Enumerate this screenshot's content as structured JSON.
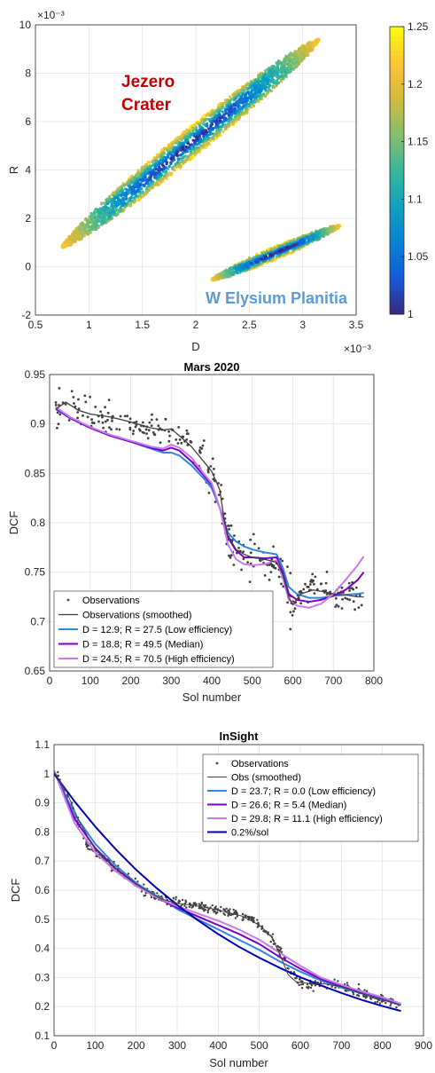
{
  "chart_data": [
    {
      "type": "scatter",
      "title": "",
      "xlabel": "D",
      "ylabel": "R",
      "xlim": [
        0.5,
        3.5
      ],
      "ylim": [
        -2,
        10
      ],
      "x_ticks": [
        "0.5",
        "1",
        "1.5",
        "2",
        "2.5",
        "3",
        "3.5"
      ],
      "y_ticks": [
        "-2",
        "0",
        "2",
        "4",
        "6",
        "8",
        "10"
      ],
      "x_exponent": "×10⁻³",
      "y_exponent": "×10⁻³",
      "grid": true,
      "annotations": [
        {
          "text_lines": [
            "Jezero",
            "Crater"
          ],
          "color": "#c00000"
        },
        {
          "text_lines": [
            "W Elysium Planitia"
          ],
          "color": "#5b9bd5"
        }
      ],
      "clusters": [
        {
          "x_range": [
            0.75,
            3.15
          ],
          "y_range": [
            0.8,
            9.4
          ]
        },
        {
          "x_range": [
            2.15,
            3.35
          ],
          "y_range": [
            -0.55,
            1.7
          ]
        }
      ],
      "colorbar": {
        "range": [
          1,
          1.25
        ],
        "ticks": [
          "1",
          "1.05",
          "1.1",
          "1.15",
          "1.2",
          "1.25"
        ],
        "colormap": "parula"
      }
    },
    {
      "type": "line",
      "title": "Mars 2020",
      "xlabel": "Sol number",
      "ylabel": "DCF",
      "xlim": [
        0,
        800
      ],
      "ylim": [
        0.65,
        0.95
      ],
      "x_ticks": [
        "0",
        "100",
        "200",
        "300",
        "400",
        "500",
        "600",
        "700",
        "800"
      ],
      "y_ticks": [
        "0.65",
        "0.7",
        "0.75",
        "0.8",
        "0.85",
        "0.9",
        "0.95"
      ],
      "grid": true,
      "legend_position": "bottom-left",
      "series": [
        {
          "name": "Observations",
          "style": "dots",
          "color": "#404040"
        },
        {
          "name": "Observations (smoothed)",
          "color": "#404040",
          "x": [
            15,
            40,
            70,
            100,
            150,
            200,
            250,
            280,
            300,
            320,
            350,
            380,
            400,
            420,
            430,
            440,
            460,
            480,
            500,
            530,
            560,
            575,
            590,
            600,
            620,
            650,
            680,
            700,
            730,
            760,
            775
          ],
          "y": [
            0.915,
            0.922,
            0.914,
            0.91,
            0.907,
            0.902,
            0.896,
            0.894,
            0.895,
            0.888,
            0.877,
            0.862,
            0.852,
            0.833,
            0.805,
            0.787,
            0.773,
            0.768,
            0.765,
            0.763,
            0.76,
            0.748,
            0.725,
            0.717,
            0.728,
            0.732,
            0.73,
            0.728,
            0.727,
            0.725,
            0.725
          ]
        },
        {
          "name": "D = 12.9; R = 27.5 (Low efficiency)",
          "color": "#2e86de",
          "x": [
            15,
            50,
            100,
            150,
            200,
            250,
            280,
            300,
            320,
            350,
            380,
            400,
            420,
            440,
            460,
            480,
            500,
            530,
            560,
            575,
            590,
            610,
            640,
            670,
            700,
            730,
            760,
            775
          ],
          "y": [
            0.915,
            0.906,
            0.896,
            0.888,
            0.882,
            0.875,
            0.871,
            0.871,
            0.868,
            0.858,
            0.845,
            0.835,
            0.815,
            0.79,
            0.781,
            0.776,
            0.773,
            0.77,
            0.768,
            0.755,
            0.735,
            0.728,
            0.724,
            0.724,
            0.726,
            0.727,
            0.728,
            0.729
          ]
        },
        {
          "name": "D = 18.8; R = 49.5 (Median)",
          "color": "#7a00c8",
          "x": [
            15,
            50,
            100,
            150,
            200,
            250,
            280,
            300,
            320,
            350,
            380,
            400,
            420,
            440,
            460,
            480,
            500,
            530,
            560,
            575,
            590,
            610,
            640,
            670,
            700,
            730,
            760,
            775
          ],
          "y": [
            0.916,
            0.906,
            0.896,
            0.888,
            0.882,
            0.876,
            0.873,
            0.876,
            0.873,
            0.862,
            0.848,
            0.838,
            0.815,
            0.785,
            0.772,
            0.765,
            0.765,
            0.764,
            0.765,
            0.75,
            0.728,
            0.722,
            0.72,
            0.722,
            0.726,
            0.732,
            0.742,
            0.75
          ]
        },
        {
          "name": "D = 24.5; R = 70.5 (High efficiency)",
          "color": "#c77cf0",
          "x": [
            15,
            50,
            100,
            150,
            200,
            250,
            280,
            300,
            320,
            350,
            380,
            400,
            420,
            440,
            460,
            480,
            500,
            530,
            560,
            575,
            590,
            610,
            640,
            670,
            700,
            730,
            760,
            775
          ],
          "y": [
            0.917,
            0.907,
            0.897,
            0.889,
            0.883,
            0.877,
            0.875,
            0.879,
            0.876,
            0.866,
            0.85,
            0.84,
            0.815,
            0.778,
            0.763,
            0.758,
            0.757,
            0.758,
            0.762,
            0.745,
            0.722,
            0.716,
            0.714,
            0.718,
            0.728,
            0.742,
            0.757,
            0.766
          ]
        }
      ]
    },
    {
      "type": "line",
      "title": "InSight",
      "xlabel": "Sol number",
      "ylabel": "DCF",
      "xlim": [
        0,
        900
      ],
      "ylim": [
        0.1,
        1.1
      ],
      "x_ticks": [
        "0",
        "100",
        "200",
        "300",
        "400",
        "500",
        "600",
        "700",
        "800",
        "900"
      ],
      "y_ticks": [
        "0.1",
        "0.2",
        "0.3",
        "0.4",
        "0.5",
        "0.6",
        "0.7",
        "0.8",
        "0.9",
        "1",
        "1.1"
      ],
      "grid": true,
      "legend_position": "top-right",
      "series": [
        {
          "name": "Observations",
          "style": "dots",
          "color": "#404040",
          "x": [
            5,
            20,
            35,
            50,
            70,
            90,
            110,
            130,
            150,
            175,
            200,
            230,
            260,
            290,
            320,
            350,
            380,
            410,
            440,
            470,
            500,
            520,
            540,
            560,
            580,
            600,
            620,
            650,
            680,
            700,
            730,
            760,
            790,
            820,
            840
          ],
          "y": [
            1.0,
            0.95,
            0.92,
            0.86,
            0.79,
            0.74,
            0.72,
            0.7,
            0.67,
            0.645,
            0.62,
            0.59,
            0.57,
            0.56,
            0.555,
            0.545,
            0.535,
            0.53,
            0.52,
            0.505,
            0.48,
            0.45,
            0.42,
            0.37,
            0.31,
            0.28,
            0.275,
            0.28,
            0.28,
            0.27,
            0.255,
            0.24,
            0.225,
            0.215,
            0.205
          ]
        },
        {
          "name": "Obs (smoothed)",
          "color": "#404040",
          "x": [
            0,
            30,
            60,
            100,
            150,
            200,
            260,
            300,
            340,
            380,
            420,
            460,
            500,
            530,
            550,
            570,
            590,
            620,
            660,
            700,
            760,
            820,
            845
          ],
          "y": [
            1.005,
            0.94,
            0.84,
            0.74,
            0.675,
            0.62,
            0.57,
            0.555,
            0.548,
            0.538,
            0.525,
            0.51,
            0.48,
            0.44,
            0.38,
            0.31,
            0.285,
            0.28,
            0.278,
            0.268,
            0.24,
            0.215,
            0.205
          ]
        },
        {
          "name": "D = 23.7; R = 0.0 (Low efficiency)",
          "color": "#2e86de",
          "x": [
            0,
            50,
            100,
            150,
            200,
            250,
            300,
            350,
            400,
            450,
            500,
            550,
            600,
            650,
            700,
            750,
            800,
            845
          ],
          "y": [
            1.01,
            0.86,
            0.76,
            0.685,
            0.625,
            0.58,
            0.535,
            0.5,
            0.465,
            0.43,
            0.395,
            0.355,
            0.32,
            0.29,
            0.265,
            0.245,
            0.225,
            0.205
          ]
        },
        {
          "name": "D = 26.6; R = 5.4 (Median)",
          "color": "#7a00c8",
          "x": [
            0,
            50,
            100,
            150,
            200,
            250,
            300,
            350,
            400,
            450,
            500,
            550,
            600,
            650,
            700,
            750,
            800,
            845
          ],
          "y": [
            1.01,
            0.845,
            0.745,
            0.675,
            0.62,
            0.575,
            0.54,
            0.51,
            0.48,
            0.45,
            0.415,
            0.37,
            0.33,
            0.295,
            0.27,
            0.25,
            0.23,
            0.208
          ]
        },
        {
          "name": "D = 29.8; R = 11.1 (High efficiency)",
          "color": "#c77cf0",
          "x": [
            0,
            50,
            100,
            150,
            200,
            250,
            300,
            350,
            400,
            450,
            500,
            550,
            600,
            650,
            700,
            750,
            800,
            845
          ],
          "y": [
            1.01,
            0.83,
            0.73,
            0.665,
            0.615,
            0.575,
            0.545,
            0.52,
            0.495,
            0.465,
            0.43,
            0.385,
            0.34,
            0.3,
            0.275,
            0.252,
            0.232,
            0.21
          ]
        },
        {
          "name": "0.2%/sol",
          "color": "#0000b4",
          "x": [
            0,
            50,
            100,
            150,
            200,
            250,
            300,
            350,
            400,
            450,
            500,
            550,
            600,
            650,
            700,
            750,
            800,
            845
          ],
          "y": [
            1.0,
            0.905,
            0.819,
            0.741,
            0.67,
            0.607,
            0.549,
            0.497,
            0.449,
            0.406,
            0.368,
            0.333,
            0.301,
            0.273,
            0.247,
            0.223,
            0.202,
            0.185
          ]
        }
      ]
    }
  ]
}
